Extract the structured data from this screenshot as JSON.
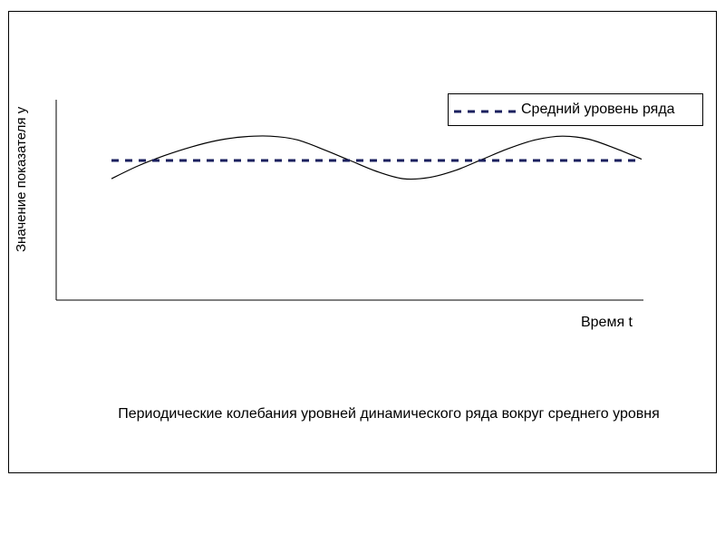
{
  "chart_data": {
    "type": "line",
    "title": "",
    "xlabel": "Время t",
    "ylabel": "Значение показателя y",
    "x": [
      0,
      0.25,
      0.5,
      0.75,
      1,
      1.25,
      1.5,
      1.75,
      2,
      2.25,
      2.5,
      2.75,
      3,
      3.25,
      3.5,
      3.75,
      4,
      4.25,
      4.5,
      4.75,
      5
    ],
    "series": [
      {
        "style": "solid",
        "color": "#000000",
        "values": [
          0.3,
          0.51,
          0.68,
          0.82,
          0.93,
          0.99,
          1.0,
          0.94,
          0.78,
          0.6,
          0.42,
          0.3,
          0.32,
          0.44,
          0.62,
          0.8,
          0.94,
          1.0,
          0.95,
          0.8,
          0.62
        ]
      },
      {
        "name": "Средний уровень ряда",
        "style": "dashed",
        "color": "#1a1f5e",
        "values": [
          0.6,
          0.6,
          0.6,
          0.6,
          0.6,
          0.6,
          0.6,
          0.6,
          0.6,
          0.6,
          0.6,
          0.6,
          0.6,
          0.6,
          0.6,
          0.6,
          0.6,
          0.6,
          0.6,
          0.6,
          0.6
        ]
      }
    ],
    "ylim": [
      -1.7,
      1.6
    ],
    "xlim": [
      0,
      5
    ],
    "grid": false,
    "legend": "top-right",
    "caption": "Периодические колебания уровней динамического ряда вокруг среднего уровня"
  }
}
